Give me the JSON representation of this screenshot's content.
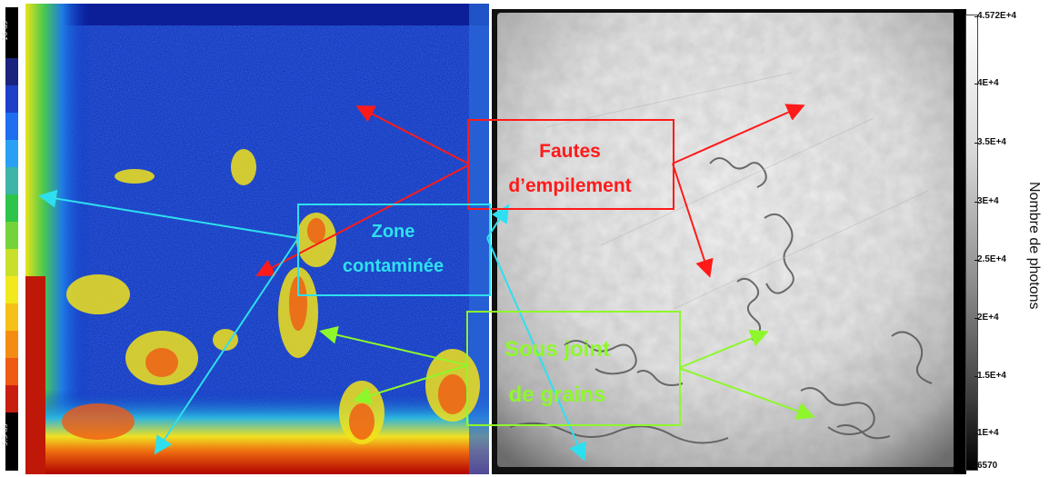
{
  "left_scale": {
    "top_label": "16 us",
    "bottom_label": "3.5 us"
  },
  "right_scale": {
    "ticks": [
      "4.572E+4",
      "4E+4",
      "3.5E+4",
      "3E+4",
      "2.5E+4",
      "2E+4",
      "1.5E+4",
      "1E+4",
      "6570"
    ],
    "axis_label": "Nombre de photons"
  },
  "annotations": {
    "fautes_line1": "Fautes",
    "fautes_line2": "d’empilement",
    "zone_line1": "Zone",
    "zone_line2": "contaminée",
    "sous_line1": "Sous joint",
    "sous_line2": "de grains"
  },
  "colors": {
    "red": "#ff1a1a",
    "cyan": "#2ee0ef",
    "green": "#8ef72c"
  }
}
